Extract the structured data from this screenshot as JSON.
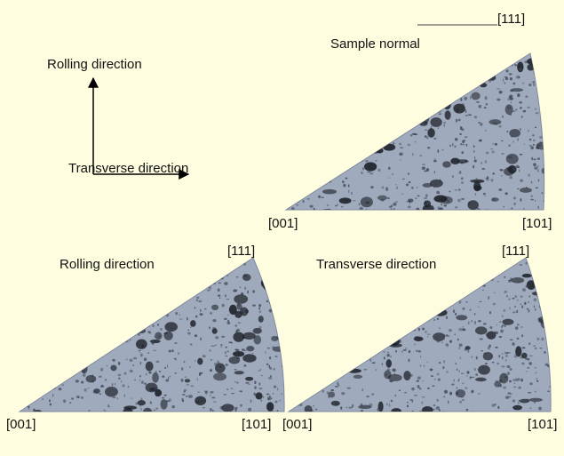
{
  "axes": {
    "vertical_label": "Rolling direction",
    "horizontal_label": "Transverse direction"
  },
  "figures": [
    {
      "title": "Sample normal",
      "corner_001": "[001]",
      "corner_101": "[101]",
      "corner_111": "[111]"
    },
    {
      "title": "Rolling direction",
      "corner_001": "[001]",
      "corner_101": "[101]",
      "corner_111": "[111]"
    },
    {
      "title": "Transverse direction",
      "corner_001": "[001]",
      "corner_101": "[101]",
      "corner_111": "[111]"
    }
  ]
}
